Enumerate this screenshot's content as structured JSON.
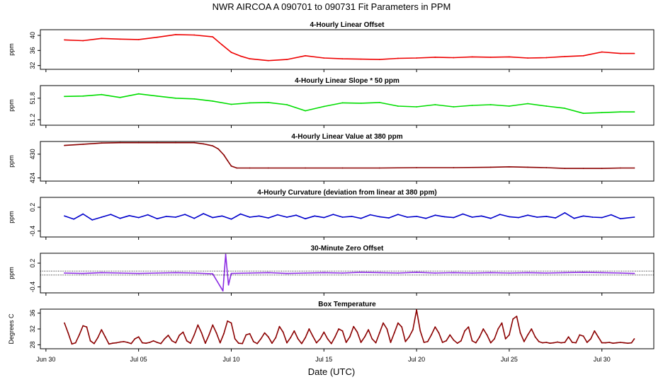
{
  "figure": {
    "title": "NWR   AIRCOA A   090701 to 090731   Fit Parameters in PPM",
    "xlabel": "Date (UTC)",
    "xticks": [
      "Jun 30",
      "Jul 05",
      "Jul 10",
      "Jul 15",
      "Jul 20",
      "Jul 25",
      "Jul 30"
    ]
  },
  "chart_data": [
    {
      "type": "line",
      "title": "4-Hourly Linear Offset",
      "ylabel": "ppm",
      "yticks": [
        "32",
        "36",
        "40"
      ],
      "ylim": [
        31,
        41.5
      ],
      "color": "#ee0000",
      "x": [
        1.0,
        2.0,
        3.0,
        4.0,
        5.0,
        6.0,
        7.0,
        8.0,
        9.0,
        9.5,
        10.0,
        10.5,
        11.0,
        12.0,
        13.0,
        14.0,
        15.0,
        16.0,
        17.0,
        18.0,
        19.0,
        20.0,
        21.0,
        22.0,
        23.0,
        24.0,
        25.0,
        26.0,
        27.0,
        28.0,
        29.0,
        30.0,
        31.0,
        31.75
      ],
      "values": [
        38.8,
        38.6,
        39.2,
        39.0,
        38.9,
        39.5,
        40.2,
        40.1,
        39.6,
        37.5,
        35.5,
        34.5,
        33.8,
        33.3,
        33.6,
        34.6,
        34.0,
        33.8,
        33.7,
        33.6,
        33.9,
        34.0,
        34.2,
        34.1,
        34.3,
        34.2,
        34.3,
        34.0,
        34.1,
        34.4,
        34.6,
        35.6,
        35.2,
        35.2
      ]
    },
    {
      "type": "line",
      "title": "4-Hourly Linear Slope * 50 ppm",
      "ylabel": "ppm",
      "yticks": [
        "51.2",
        "51.8"
      ],
      "ylim": [
        51.05,
        52.15
      ],
      "color": "#00dd00",
      "x": [
        1.0,
        2.0,
        3.0,
        4.0,
        5.0,
        6.0,
        7.0,
        8.0,
        9.0,
        10.0,
        11.0,
        12.0,
        13.0,
        14.0,
        15.0,
        16.0,
        17.0,
        18.0,
        19.0,
        20.0,
        21.0,
        22.0,
        23.0,
        24.0,
        25.0,
        26.0,
        27.0,
        28.0,
        29.0,
        30.0,
        31.0,
        31.75
      ],
      "values": [
        51.85,
        51.86,
        51.9,
        51.82,
        51.92,
        51.86,
        51.8,
        51.78,
        51.72,
        51.63,
        51.67,
        51.68,
        51.62,
        51.45,
        51.57,
        51.67,
        51.66,
        51.68,
        51.58,
        51.56,
        51.62,
        51.56,
        51.6,
        51.62,
        51.58,
        51.65,
        51.58,
        51.52,
        51.38,
        51.4,
        51.42,
        51.42
      ]
    },
    {
      "type": "line",
      "title": "4-Hourly Linear Value at 380 ppm",
      "ylabel": "ppm",
      "yticks": [
        "424",
        "430"
      ],
      "ylim": [
        423.2,
        433.2
      ],
      "color": "#8b0000",
      "x": [
        1.0,
        2.0,
        3.0,
        4.0,
        5.0,
        6.0,
        7.0,
        8.0,
        8.5,
        9.0,
        9.3,
        9.6,
        9.8,
        10.0,
        10.3,
        11.0,
        12.0,
        14.0,
        16.0,
        18.0,
        20.0,
        22.0,
        24.0,
        25.0,
        26.0,
        27.0,
        28.0,
        29.0,
        30.0,
        31.0,
        31.75
      ],
      "values": [
        432.2,
        432.5,
        432.8,
        432.9,
        432.9,
        432.9,
        432.9,
        432.9,
        432.6,
        432.1,
        431.3,
        429.8,
        428.4,
        427.0,
        426.5,
        426.5,
        426.5,
        426.5,
        426.5,
        426.5,
        426.6,
        426.6,
        426.7,
        426.8,
        426.7,
        426.6,
        426.4,
        426.4,
        426.4,
        426.5,
        426.5
      ]
    },
    {
      "type": "line",
      "title": "4-Hourly Curvature (deviation from linear at 380 ppm)",
      "ylabel": "ppm",
      "yticks": [
        "-0.4",
        "0.2"
      ],
      "ylim": [
        -0.55,
        0.45
      ],
      "color": "#0000cc",
      "x": [
        1.0,
        1.5,
        2.0,
        2.5,
        3.0,
        3.5,
        4.0,
        4.5,
        5.0,
        5.5,
        6.0,
        6.5,
        7.0,
        7.5,
        8.0,
        8.5,
        9.0,
        9.5,
        10.0,
        10.5,
        11.0,
        11.5,
        12.0,
        12.5,
        13.0,
        13.5,
        14.0,
        14.5,
        15.0,
        15.5,
        16.0,
        16.5,
        17.0,
        17.5,
        18.0,
        18.5,
        19.0,
        19.5,
        20.0,
        20.5,
        21.0,
        21.5,
        22.0,
        22.5,
        23.0,
        23.5,
        24.0,
        24.5,
        25.0,
        25.5,
        26.0,
        26.5,
        27.0,
        27.5,
        28.0,
        28.5,
        29.0,
        29.5,
        30.0,
        30.5,
        31.0,
        31.75
      ],
      "values": [
        -0.02,
        -0.1,
        0.03,
        -0.12,
        -0.05,
        0.02,
        -0.08,
        -0.01,
        -0.06,
        0.01,
        -0.09,
        -0.03,
        -0.05,
        0.02,
        -0.08,
        0.04,
        -0.06,
        -0.02,
        -0.1,
        0.03,
        -0.05,
        -0.02,
        -0.07,
        0.01,
        -0.05,
        0.0,
        -0.09,
        -0.02,
        -0.06,
        0.02,
        -0.05,
        -0.03,
        -0.08,
        0.01,
        -0.04,
        -0.07,
        0.02,
        -0.05,
        -0.03,
        -0.08,
        0.0,
        -0.04,
        -0.06,
        0.03,
        -0.05,
        -0.02,
        -0.08,
        0.02,
        -0.04,
        -0.06,
        0.0,
        -0.05,
        -0.03,
        -0.07,
        0.06,
        -0.08,
        -0.02,
        -0.05,
        -0.06,
        0.01,
        -0.09,
        -0.05
      ]
    },
    {
      "type": "line",
      "title": "30-Minute Zero Offset",
      "ylabel": "ppm",
      "yticks": [
        "-0.4",
        "0.2"
      ],
      "ylim": [
        -0.55,
        0.45
      ],
      "color": "#8a2be2",
      "reference_lines": [
        0.0,
        -0.1
      ],
      "x": [
        1.0,
        2.0,
        3.0,
        4.0,
        5.0,
        6.0,
        7.0,
        8.0,
        9.0,
        9.55,
        9.7,
        9.85,
        10.0,
        11.0,
        12.0,
        13.0,
        14.0,
        15.0,
        16.0,
        17.0,
        18.0,
        19.0,
        20.0,
        21.0,
        22.0,
        23.0,
        24.0,
        25.0,
        26.0,
        27.0,
        28.0,
        29.0,
        30.0,
        31.0,
        31.75
      ],
      "values": [
        -0.05,
        -0.06,
        -0.04,
        -0.05,
        -0.06,
        -0.05,
        -0.04,
        -0.05,
        -0.07,
        -0.5,
        0.42,
        -0.35,
        -0.06,
        -0.05,
        -0.04,
        -0.06,
        -0.05,
        -0.04,
        -0.05,
        -0.03,
        -0.04,
        -0.05,
        -0.03,
        -0.05,
        -0.04,
        -0.05,
        -0.04,
        -0.05,
        -0.04,
        -0.05,
        -0.04,
        -0.03,
        -0.04,
        -0.05,
        -0.06
      ]
    },
    {
      "type": "line",
      "title": "Box Temperature",
      "ylabel": "Degrees C",
      "yticks": [
        "28",
        "32",
        "36"
      ],
      "ylim": [
        27,
        37
      ],
      "color": "#8b0000",
      "x": [
        1.0,
        1.2,
        1.4,
        1.6,
        1.8,
        2.0,
        2.2,
        2.4,
        2.6,
        2.8,
        3.0,
        3.2,
        3.4,
        3.6,
        3.8,
        4.0,
        4.2,
        4.4,
        4.6,
        4.8,
        5.0,
        5.2,
        5.4,
        5.6,
        5.8,
        6.0,
        6.2,
        6.4,
        6.6,
        6.8,
        7.0,
        7.2,
        7.4,
        7.6,
        7.8,
        8.0,
        8.2,
        8.4,
        8.6,
        8.8,
        9.0,
        9.2,
        9.4,
        9.6,
        9.8,
        10.0,
        10.2,
        10.4,
        10.6,
        10.8,
        11.0,
        11.2,
        11.4,
        11.6,
        11.8,
        12.0,
        12.2,
        12.4,
        12.6,
        12.8,
        13.0,
        13.2,
        13.4,
        13.6,
        13.8,
        14.0,
        14.2,
        14.4,
        14.6,
        14.8,
        15.0,
        15.2,
        15.4,
        15.6,
        15.8,
        16.0,
        16.2,
        16.4,
        16.6,
        16.8,
        17.0,
        17.2,
        17.4,
        17.6,
        17.8,
        18.0,
        18.2,
        18.4,
        18.6,
        18.8,
        19.0,
        19.2,
        19.4,
        19.6,
        19.8,
        20.0,
        20.2,
        20.4,
        20.6,
        20.8,
        21.0,
        21.2,
        21.4,
        21.6,
        21.8,
        22.0,
        22.2,
        22.4,
        22.6,
        22.8,
        23.0,
        23.2,
        23.4,
        23.6,
        23.8,
        24.0,
        24.2,
        24.4,
        24.6,
        24.8,
        25.0,
        25.2,
        25.4,
        25.6,
        25.8,
        26.0,
        26.2,
        26.4,
        26.6,
        26.8,
        27.0,
        27.2,
        27.4,
        27.6,
        27.8,
        28.0,
        28.2,
        28.4,
        28.6,
        28.8,
        29.0,
        29.2,
        29.4,
        29.6,
        29.8,
        30.0,
        30.2,
        30.4,
        30.6,
        30.8,
        31.0,
        31.2,
        31.4,
        31.6,
        31.75
      ],
      "values": [
        33.5,
        31.0,
        28.2,
        28.5,
        30.5,
        32.8,
        32.5,
        29.0,
        28.3,
        29.8,
        31.8,
        30.0,
        28.2,
        28.4,
        28.5,
        28.7,
        28.8,
        28.6,
        28.3,
        29.5,
        30.0,
        28.5,
        28.4,
        28.6,
        29.0,
        28.6,
        28.3,
        29.5,
        30.4,
        29.0,
        28.5,
        30.4,
        31.2,
        29.0,
        28.4,
        30.5,
        33.0,
        31.0,
        28.4,
        30.5,
        33.0,
        31.0,
        28.5,
        30.8,
        34.0,
        33.5,
        29.5,
        28.4,
        28.3,
        30.5,
        30.8,
        28.8,
        28.3,
        29.5,
        31.0,
        30.0,
        28.4,
        29.8,
        32.6,
        31.2,
        28.5,
        29.8,
        31.5,
        29.5,
        28.3,
        29.8,
        32.0,
        30.2,
        28.5,
        29.5,
        31.2,
        29.5,
        28.3,
        30.0,
        32.0,
        31.5,
        28.6,
        30.0,
        32.6,
        31.2,
        28.6,
        30.0,
        31.8,
        29.5,
        28.5,
        31.0,
        33.5,
        32.0,
        28.6,
        31.0,
        33.5,
        32.5,
        28.8,
        30.0,
        31.8,
        36.8,
        31.5,
        28.6,
        28.8,
        30.5,
        32.5,
        31.0,
        28.6,
        29.0,
        30.5,
        29.2,
        28.4,
        29.0,
        31.5,
        32.5,
        29.0,
        28.5,
        30.0,
        32.0,
        30.5,
        28.5,
        29.5,
        32.0,
        33.5,
        29.5,
        30.5,
        34.5,
        35.2,
        31.0,
        28.8,
        30.5,
        32.0,
        30.0,
        28.8,
        28.5,
        28.6,
        28.4,
        28.5,
        28.7,
        28.5,
        28.6,
        30.0,
        28.6,
        28.5,
        30.5,
        30.2,
        28.6,
        29.5,
        31.5,
        30.0,
        28.5,
        28.5,
        28.6,
        28.4,
        28.5,
        28.6,
        28.5,
        28.4,
        28.5,
        29.5
      ]
    }
  ]
}
